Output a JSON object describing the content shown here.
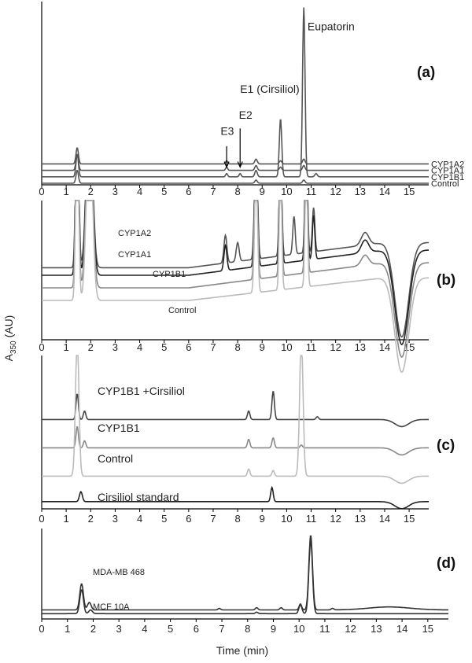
{
  "figure": {
    "ylabel_main": "A",
    "ylabel_sub": "350",
    "ylabel_unit": " (AU)",
    "xlabel": "Time (min)"
  },
  "chart_data": [
    {
      "id": "a",
      "type": "line",
      "panel_label": "(a)",
      "xlim": [
        0,
        15.8
      ],
      "x_ticks": [
        0,
        1,
        2,
        3,
        4,
        5,
        6,
        7,
        8,
        9,
        10,
        11,
        12,
        13,
        14,
        15
      ],
      "series": [
        {
          "name": "CYP1A2",
          "color": "#555555",
          "baseline": 0.12,
          "peaks": [
            [
              1.45,
              0.1,
              0.05
            ],
            [
              7.55,
              0.02,
              0.04
            ],
            [
              8.75,
              0.03,
              0.05
            ],
            [
              9.75,
              0.02,
              0.05
            ],
            [
              10.7,
              0.03,
              0.05
            ]
          ]
        },
        {
          "name": "CYP1A1",
          "color": "#555555",
          "baseline": 0.08,
          "peaks": [
            [
              1.45,
              0.1,
              0.05
            ],
            [
              7.55,
              0.02,
              0.04
            ],
            [
              8.75,
              0.03,
              0.05
            ],
            [
              9.75,
              0.02,
              0.05
            ],
            [
              10.7,
              0.03,
              0.05
            ]
          ]
        },
        {
          "name": "CYP1B1",
          "color": "#555555",
          "baseline": 0.04,
          "peaks": [
            [
              1.45,
              0.14,
              0.05
            ],
            [
              7.55,
              0.02,
              0.04
            ],
            [
              8.1,
              0.02,
              0.04
            ],
            [
              8.75,
              0.04,
              0.05
            ],
            [
              9.75,
              0.36,
              0.05
            ],
            [
              10.7,
              1.05,
              0.05
            ],
            [
              11.2,
              0.02,
              0.05
            ]
          ]
        },
        {
          "name": "Control",
          "color": "#555555",
          "baseline": 0.0,
          "peaks": [
            [
              1.45,
              0.08,
              0.05
            ],
            [
              8.75,
              0.02,
              0.05
            ],
            [
              10.7,
              0.02,
              0.05
            ]
          ]
        }
      ],
      "annotations": [
        {
          "text": "Eupatorin",
          "x": 10.85,
          "y": 0.95,
          "size": "lg"
        },
        {
          "text": "E1 (Cirsiliol)",
          "x": 8.1,
          "y": 0.56,
          "size": "lg"
        },
        {
          "text": "E2",
          "x": 8.05,
          "y": 0.4,
          "size": "lg"
        },
        {
          "text": "E3",
          "x": 7.3,
          "y": 0.3,
          "size": "lg"
        }
      ],
      "arrows": [
        {
          "x": 7.55,
          "y_from": 0.23,
          "y_to": 0.1
        },
        {
          "x": 8.1,
          "y_from": 0.34,
          "y_to": 0.1
        }
      ]
    },
    {
      "id": "b",
      "type": "line",
      "panel_label": "(b)",
      "xlim": [
        0,
        15.8
      ],
      "x_ticks": [
        0,
        1,
        2,
        3,
        4,
        5,
        6,
        7,
        8,
        9,
        10,
        11,
        12,
        13,
        14,
        15
      ],
      "series": [
        {
          "name": "CYP1A2",
          "color": "#555555",
          "baseline": 0.56,
          "rise": 0.2,
          "dip": 0.75,
          "peaks": [
            [
              1.45,
              1.5,
              0.06
            ],
            [
              1.95,
              1.5,
              0.12
            ],
            [
              7.5,
              0.22,
              0.06
            ],
            [
              8.0,
              0.15,
              0.06
            ],
            [
              8.75,
              1.0,
              0.06
            ],
            [
              9.75,
              1.0,
              0.05
            ],
            [
              10.3,
              0.3,
              0.05
            ],
            [
              10.8,
              1.0,
              0.05
            ],
            [
              11.1,
              0.35,
              0.05
            ],
            [
              13.2,
              0.1,
              0.15
            ]
          ]
        },
        {
          "name": "CYP1A1",
          "color": "#222222",
          "baseline": 0.5,
          "rise": 0.2,
          "dip": 0.75,
          "peaks": [
            [
              1.45,
              1.5,
              0.06
            ],
            [
              1.95,
              1.5,
              0.12
            ],
            [
              7.5,
              0.2,
              0.06
            ],
            [
              8.75,
              1.0,
              0.06
            ],
            [
              9.75,
              1.0,
              0.05
            ],
            [
              10.8,
              1.0,
              0.05
            ],
            [
              11.1,
              0.35,
              0.05
            ],
            [
              13.2,
              0.1,
              0.15
            ]
          ]
        },
        {
          "name": "CYP1B1",
          "color": "#888888",
          "baseline": 0.4,
          "rise": 0.2,
          "dip": 0.75,
          "peaks": [
            [
              1.45,
              1.5,
              0.06
            ],
            [
              1.95,
              1.5,
              0.12
            ],
            [
              8.75,
              1.0,
              0.06
            ],
            [
              9.75,
              1.0,
              0.05
            ],
            [
              10.8,
              1.0,
              0.05
            ],
            [
              13.2,
              0.08,
              0.15
            ]
          ]
        },
        {
          "name": "Control",
          "color": "#bbbbbb",
          "baseline": 0.3,
          "rise": 0.18,
          "dip": 0.75,
          "peaks": [
            [
              1.45,
              1.5,
              0.06
            ],
            [
              1.95,
              1.5,
              0.12
            ],
            [
              8.75,
              1.0,
              0.06
            ],
            [
              9.75,
              1.0,
              0.05
            ],
            [
              10.8,
              1.0,
              0.05
            ]
          ]
        }
      ]
    },
    {
      "id": "c",
      "type": "line",
      "panel_label": "(c)",
      "xlim": [
        0,
        15.8
      ],
      "x_ticks": [
        0,
        1,
        2,
        3,
        4,
        5,
        6,
        7,
        8,
        9,
        10,
        11,
        12,
        13,
        14,
        15
      ],
      "series": [
        {
          "name": "CYP1B1 +Cirsiliol",
          "color": "#444444",
          "baseline": 0.62,
          "dip": 0.05,
          "peaks": [
            [
              1.45,
              0.18,
              0.05
            ],
            [
              1.75,
              0.06,
              0.05
            ],
            [
              8.45,
              0.06,
              0.05
            ],
            [
              9.45,
              0.2,
              0.05
            ],
            [
              11.25,
              0.02,
              0.05
            ]
          ]
        },
        {
          "name": "CYP1B1",
          "color": "#888888",
          "baseline": 0.42,
          "dip": 0.05,
          "peaks": [
            [
              1.45,
              0.15,
              0.05
            ],
            [
              1.75,
              0.05,
              0.05
            ],
            [
              8.45,
              0.06,
              0.05
            ],
            [
              9.45,
              0.07,
              0.05
            ],
            [
              10.6,
              0.02,
              0.05
            ]
          ]
        },
        {
          "name": "Control",
          "color": "#bbbbbb",
          "baseline": 0.22,
          "dip": 0.05,
          "peaks": [
            [
              1.45,
              0.98,
              0.07
            ],
            [
              8.45,
              0.05,
              0.05
            ],
            [
              9.45,
              0.04,
              0.05
            ],
            [
              10.6,
              0.98,
              0.07
            ]
          ]
        },
        {
          "name": "Cirsiliol standard",
          "color": "#222222",
          "baseline": 0.04,
          "dip": 0.05,
          "peaks": [
            [
              1.6,
              0.07,
              0.06
            ],
            [
              9.4,
              0.1,
              0.05
            ]
          ]
        }
      ]
    },
    {
      "id": "d",
      "type": "line",
      "panel_label": "(d)",
      "xlim": [
        0,
        15.8
      ],
      "x_ticks": [
        0,
        1,
        2,
        3,
        4,
        5,
        6,
        7,
        8,
        9,
        10,
        11,
        12,
        13,
        14,
        15
      ],
      "series": [
        {
          "name": "MDA-MB 468",
          "color": "#333333",
          "baseline": 0.1,
          "hump": 0.04,
          "peaks": [
            [
              1.55,
              0.35,
              0.07
            ],
            [
              1.85,
              0.1,
              0.07
            ],
            [
              6.9,
              0.02,
              0.05
            ],
            [
              8.35,
              0.03,
              0.05
            ],
            [
              9.3,
              0.03,
              0.05
            ],
            [
              10.05,
              0.08,
              0.05
            ],
            [
              10.45,
              1.0,
              0.07
            ],
            [
              11.3,
              0.02,
              0.05
            ]
          ]
        },
        {
          "name": "MCF 10A",
          "color": "#333333",
          "baseline": 0.05,
          "hump": 0.0,
          "peaks": [
            [
              1.55,
              0.32,
              0.07
            ],
            [
              1.9,
              0.05,
              0.07
            ],
            [
              8.35,
              0.02,
              0.05
            ],
            [
              10.05,
              0.12,
              0.06
            ],
            [
              10.45,
              0.98,
              0.07
            ]
          ]
        }
      ]
    }
  ]
}
